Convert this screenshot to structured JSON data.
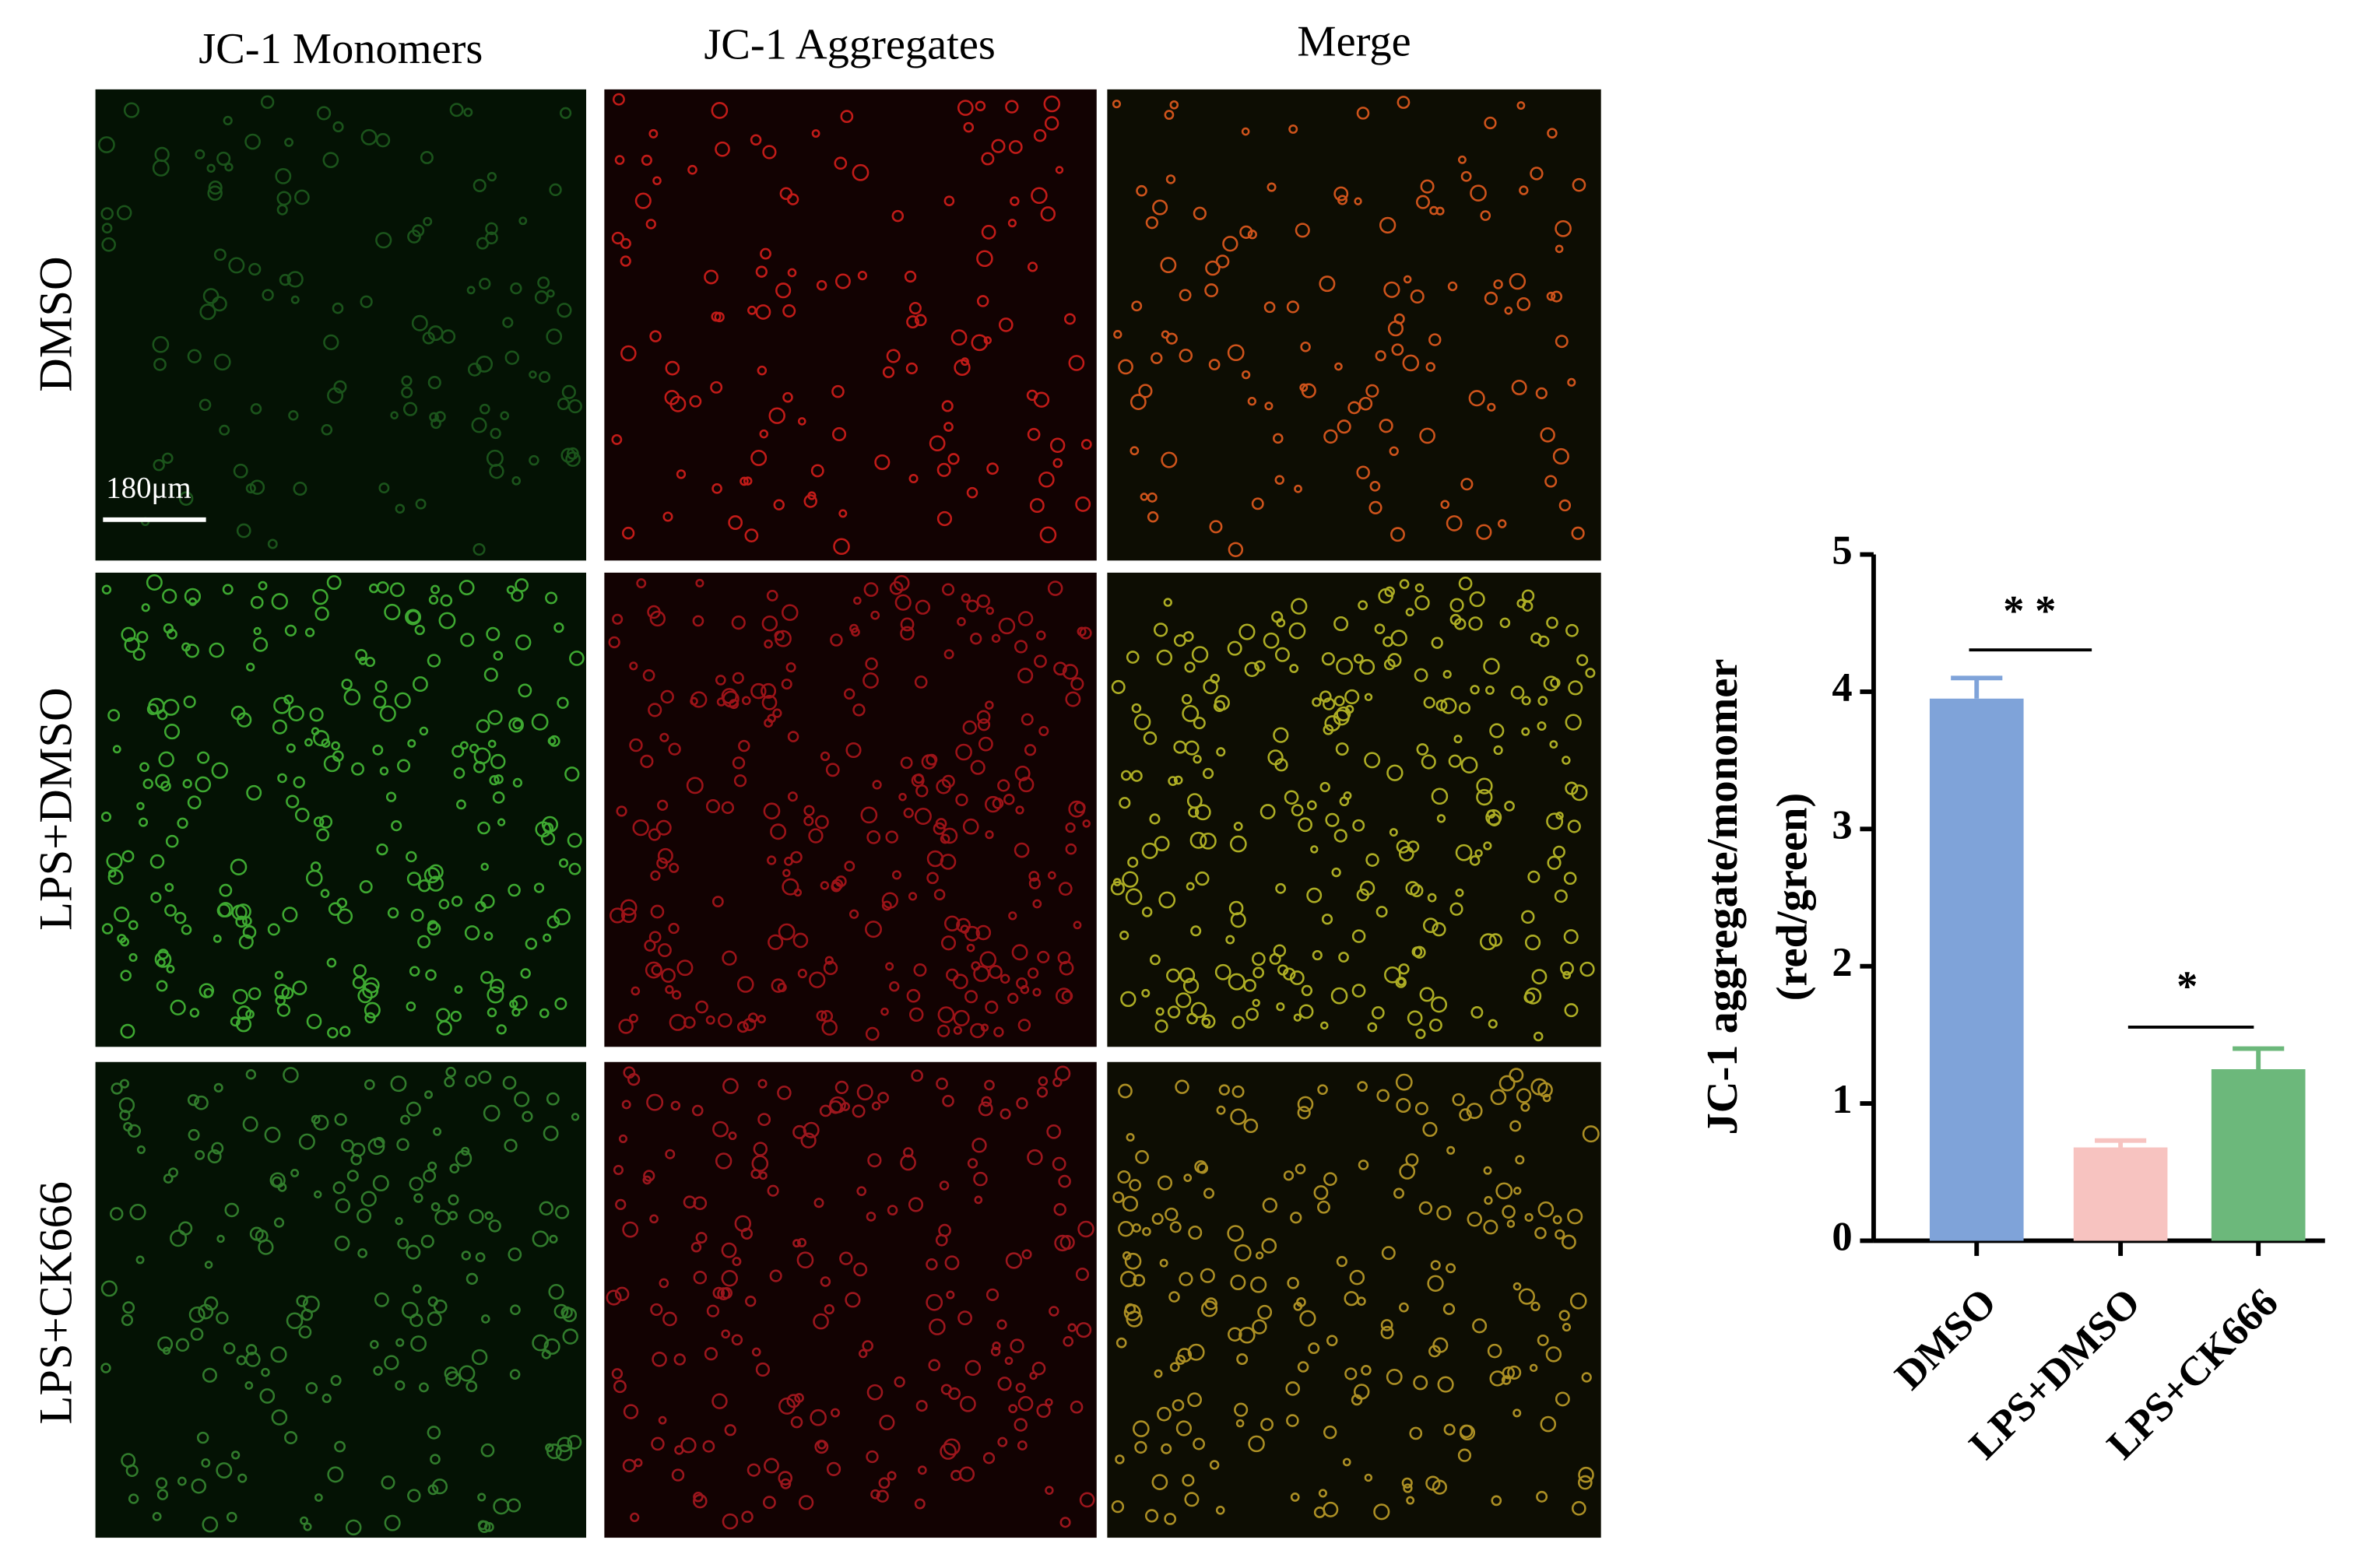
{
  "figure": {
    "columns": [
      "JC-1 Monomers",
      "JC-1 Aggregates",
      "Merge"
    ],
    "rows": [
      "DMSO",
      "LPS+DMSO",
      "LPS+CK666"
    ],
    "scale_bar": "180μm"
  },
  "chart_data": {
    "type": "bar",
    "ylabel": [
      "JC-1 aggregate/monomer",
      "(red/green)"
    ],
    "categories": [
      "DMSO",
      "LPS+DMSO",
      "LPS+CK666"
    ],
    "values": [
      3.95,
      0.68,
      1.25
    ],
    "errors": [
      0.15,
      0.05,
      0.15
    ],
    "colors": [
      "#7fa3d9",
      "#f7c3c0",
      "#6cb87b"
    ],
    "ylim": [
      0,
      5
    ],
    "yticks": [
      0,
      1,
      2,
      3,
      4,
      5
    ],
    "annotations": [
      "* *",
      "*"
    ]
  }
}
